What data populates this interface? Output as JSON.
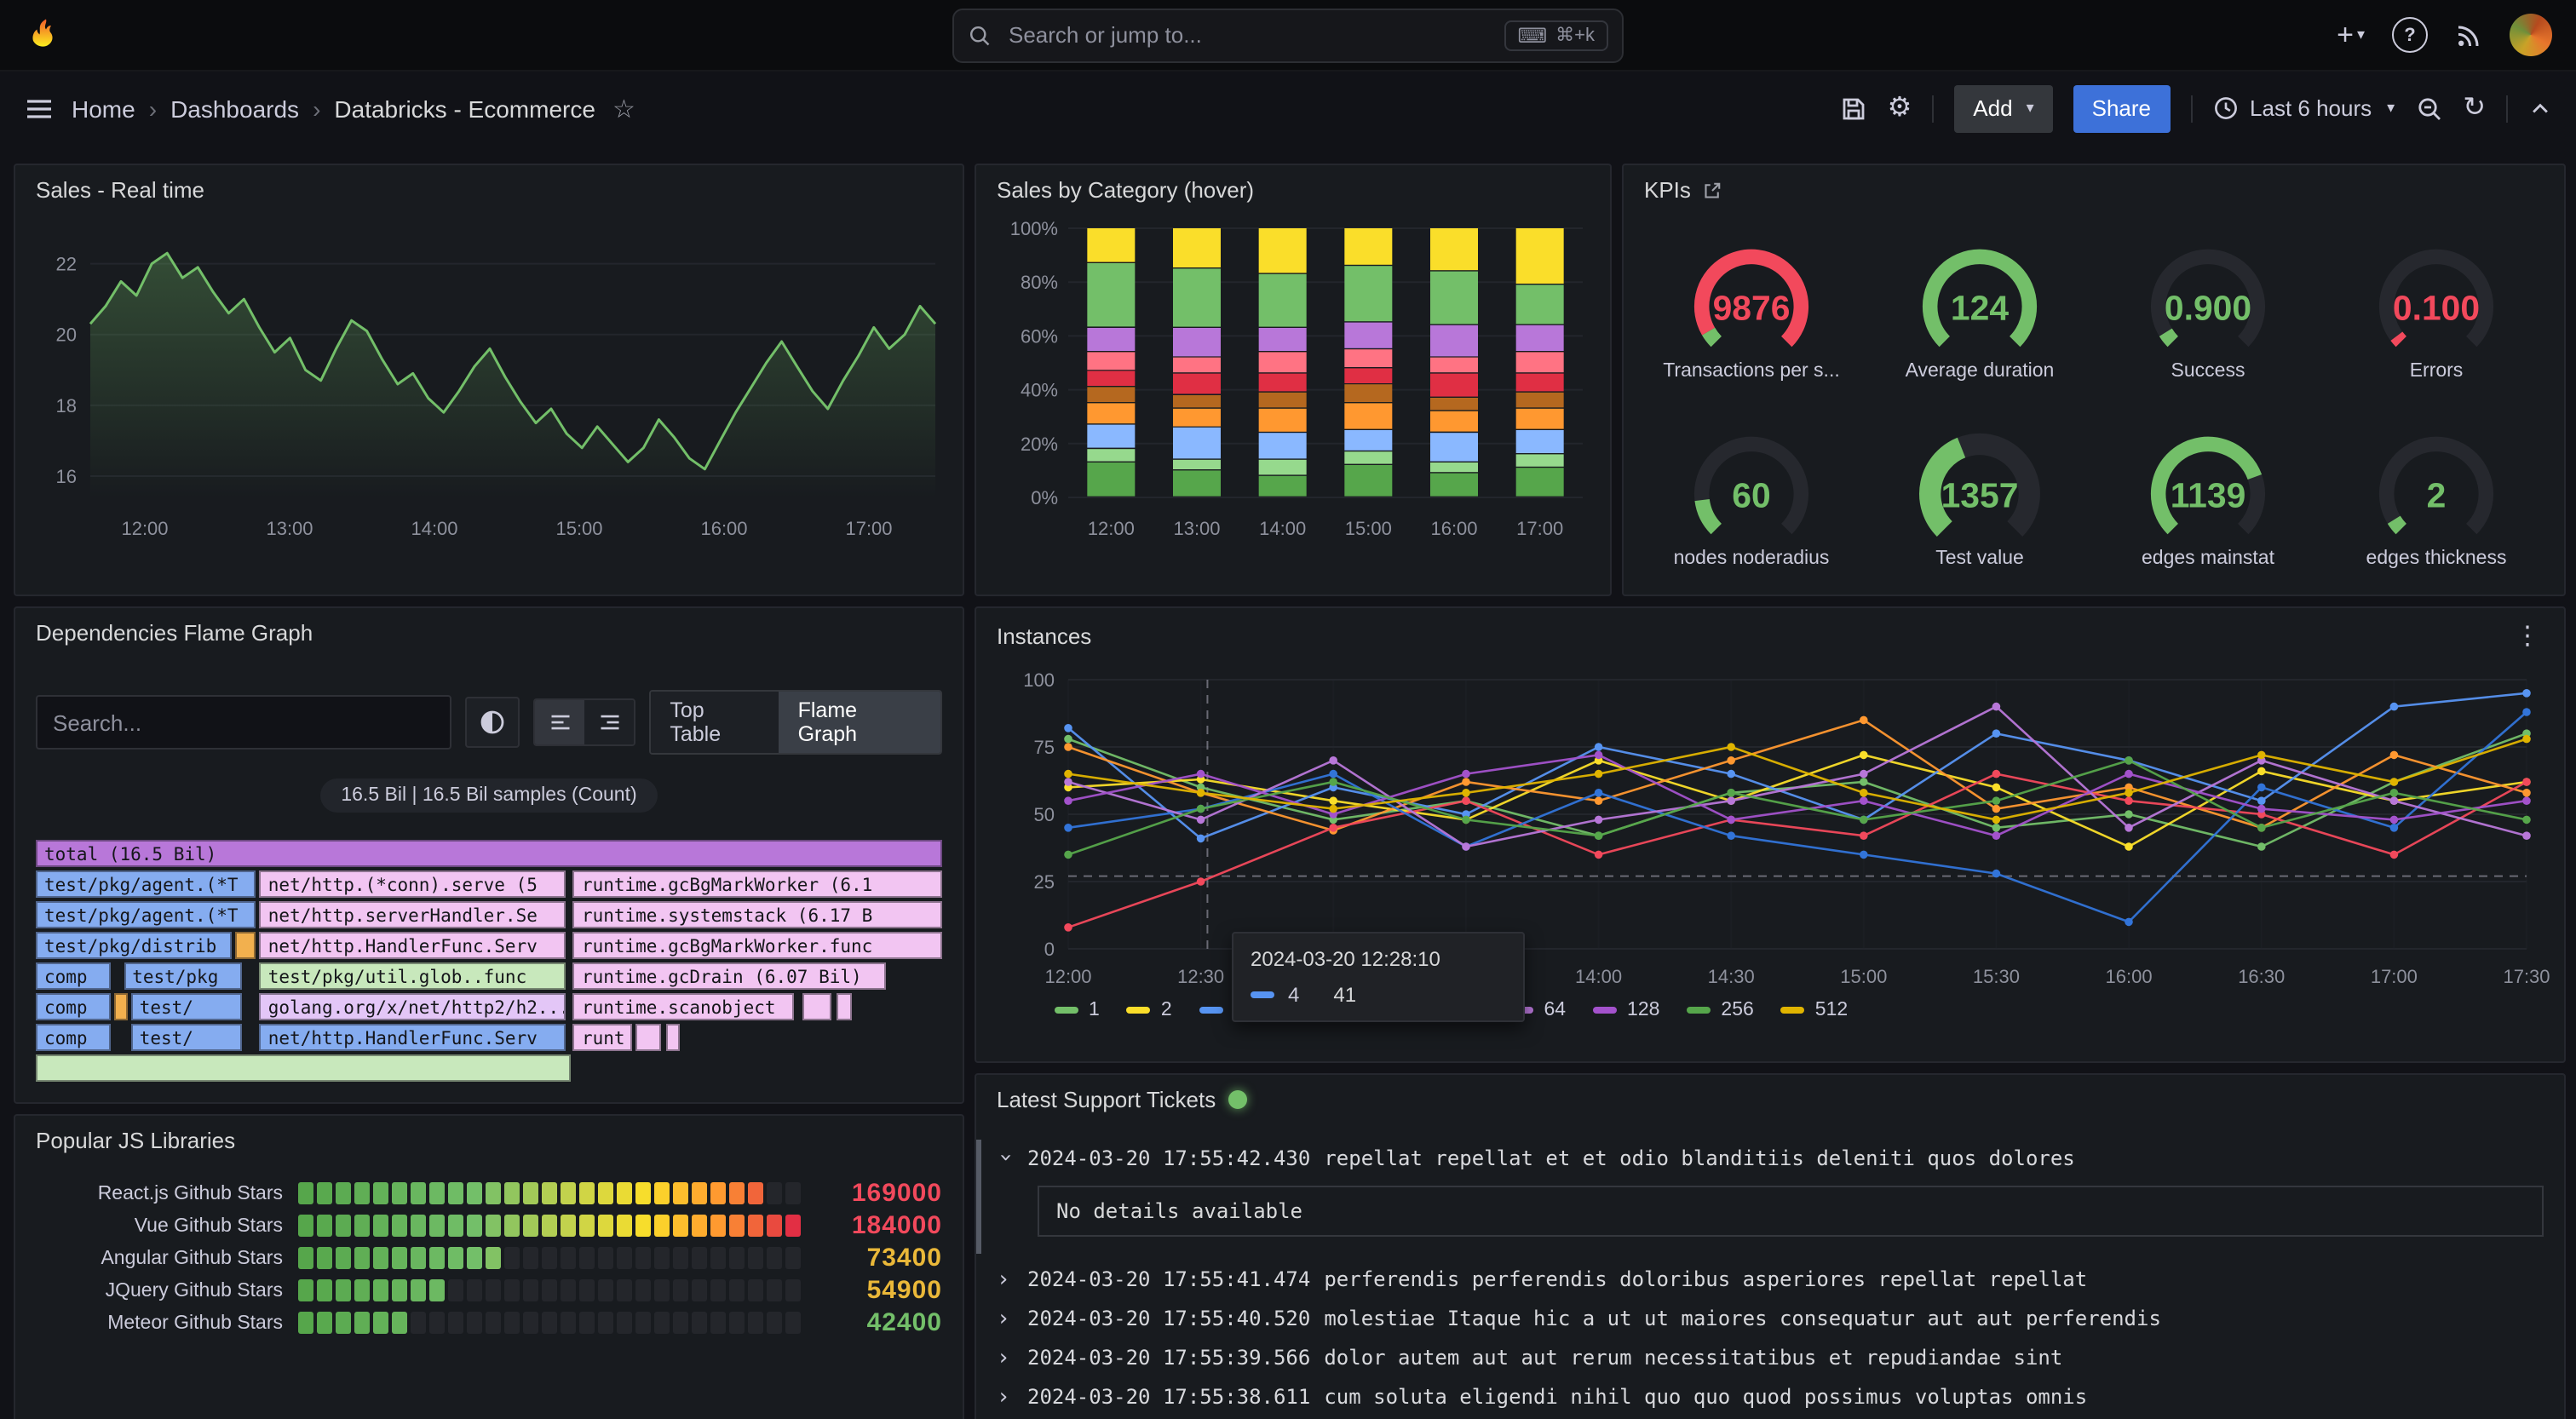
{
  "topnav": {
    "search": {
      "placeholder": "Search or jump to...",
      "shortcut": "⌘+k"
    }
  },
  "nav2": {
    "breadcrumbs": [
      "Home",
      "Dashboards",
      "Databricks - Ecommerce"
    ],
    "add_label": "Add",
    "share_label": "Share",
    "time_range": "Last 6 hours"
  },
  "sales_panel": {
    "title": "Sales - Real time",
    "color": "#73BF69",
    "ymin": 15.4,
    "ymax": 23.0,
    "y_ticks": [
      22,
      20,
      18,
      16
    ],
    "x_ticks": [
      "12:00",
      "13:00",
      "14:00",
      "15:00",
      "16:00",
      "17:00"
    ],
    "values": [
      20.3,
      20.8,
      21.5,
      21.1,
      22.0,
      22.3,
      21.6,
      21.9,
      21.2,
      20.6,
      21.0,
      20.2,
      19.5,
      19.9,
      19.0,
      18.7,
      19.6,
      20.4,
      20.1,
      19.3,
      18.6,
      18.9,
      18.2,
      17.8,
      18.4,
      19.1,
      19.6,
      18.8,
      18.1,
      17.5,
      17.9,
      17.2,
      16.8,
      17.4,
      16.9,
      16.4,
      16.8,
      17.6,
      17.1,
      16.5,
      16.2,
      17.0,
      17.8,
      18.5,
      19.2,
      19.8,
      19.1,
      18.4,
      17.9,
      18.7,
      19.4,
      20.2,
      19.6,
      20.0,
      20.8,
      20.3
    ]
  },
  "category_panel": {
    "title": "Sales by Category (hover)",
    "y_ticks": [
      "100%",
      "80%",
      "60%",
      "40%",
      "20%",
      "0%"
    ],
    "x_ticks": [
      "12:00",
      "13:00",
      "14:00",
      "15:00",
      "16:00",
      "17:00"
    ],
    "segments": [
      {
        "color": "#56A64B",
        "values": [
          13,
          10,
          8,
          12,
          9,
          11
        ]
      },
      {
        "color": "#96D98D",
        "values": [
          5,
          4,
          6,
          5,
          4,
          5
        ]
      },
      {
        "color": "#8AB8FF",
        "values": [
          9,
          12,
          10,
          8,
          11,
          9
        ]
      },
      {
        "color": "#FF9830",
        "values": [
          8,
          7,
          9,
          10,
          8,
          8
        ]
      },
      {
        "color": "#B5681F",
        "values": [
          6,
          5,
          6,
          7,
          5,
          6
        ]
      },
      {
        "color": "#E02F44",
        "values": [
          6,
          8,
          7,
          6,
          9,
          7
        ]
      },
      {
        "color": "#FF7383",
        "values": [
          7,
          6,
          8,
          7,
          6,
          8
        ]
      },
      {
        "color": "#B877D9",
        "values": [
          9,
          11,
          9,
          10,
          12,
          10
        ]
      },
      {
        "color": "#73BF69",
        "values": [
          24,
          22,
          20,
          21,
          20,
          15
        ]
      },
      {
        "color": "#FADE2A",
        "values": [
          13,
          15,
          17,
          14,
          16,
          21
        ]
      }
    ]
  },
  "kpis_panel": {
    "title": "KPIs",
    "gauges": [
      {
        "value": "9876",
        "label": "Transactions per s...",
        "color": "#F2495C",
        "thick": false,
        "arcs": [
          {
            "from": 0,
            "to": 0.055,
            "color": "#73BF69"
          },
          {
            "from": 0.055,
            "to": 1,
            "color": "#F2495C"
          }
        ]
      },
      {
        "value": "124",
        "label": "Average duration",
        "color": "#73BF69",
        "thick": false,
        "arcs": [
          {
            "from": 0,
            "to": 1,
            "color": "#73BF69"
          }
        ]
      },
      {
        "value": "0.900",
        "label": "Success",
        "color": "#73BF69",
        "thick": false,
        "arcs": [
          {
            "from": 0,
            "to": 0.05,
            "color": "#73BF69"
          }
        ]
      },
      {
        "value": "0.100",
        "label": "Errors",
        "color": "#F2495C",
        "thick": false,
        "arcs": [
          {
            "from": 0,
            "to": 0.03,
            "color": "#F2495C"
          }
        ]
      },
      {
        "value": "60",
        "label": "nodes noderadius",
        "color": "#73BF69",
        "thick": false,
        "arcs": [
          {
            "from": 0,
            "to": 0.14,
            "color": "#73BF69"
          }
        ]
      },
      {
        "value": "1357",
        "label": "Test value",
        "color": "#73BF69",
        "thick": true,
        "arcs": [
          {
            "from": 0,
            "to": 0.42,
            "color": "#73BF69"
          }
        ]
      },
      {
        "value": "1139",
        "label": "edges mainstat",
        "color": "#73BF69",
        "thick": false,
        "arcs": [
          {
            "from": 0,
            "to": 0.76,
            "color": "#73BF69"
          }
        ]
      },
      {
        "value": "2",
        "label": "edges thickness",
        "color": "#73BF69",
        "thick": false,
        "arcs": [
          {
            "from": 0,
            "to": 0.05,
            "color": "#73BF69"
          }
        ]
      }
    ]
  },
  "flame_panel": {
    "title": "Dependencies Flame Graph",
    "search_placeholder": "Search...",
    "tabs": [
      "Top Table",
      "Flame Graph"
    ],
    "active_tab": "Flame Graph",
    "badge": "16.5 Bil | 16.5 Bil samples (Count)",
    "colors": {
      "purple": "#b877d9",
      "blue": "#85acf0",
      "pink": "#f2c5f2",
      "green": "#c8e8bc",
      "amber": "#f2b04e",
      "lavender": "#e3c6f7"
    },
    "rows": [
      [
        {
          "t": "total (16.5 Bil)",
          "x": 0,
          "w": 100,
          "c": "purple"
        }
      ],
      [
        {
          "t": "test/pkg/agent.(*T",
          "x": 0,
          "w": 24.3,
          "c": "blue"
        },
        {
          "t": "net/http.(*conn).serve (5",
          "x": 24.7,
          "w": 33.8,
          "c": "pink"
        },
        {
          "t": "runtime.gcBgMarkWorker (6.1",
          "x": 59.3,
          "w": 40.7,
          "c": "pink"
        }
      ],
      [
        {
          "t": "test/pkg/agent.(*T",
          "x": 0,
          "w": 24.3,
          "c": "blue"
        },
        {
          "t": "net/http.serverHandler.Se",
          "x": 24.7,
          "w": 33.8,
          "c": "pink"
        },
        {
          "t": "runtime.systemstack (6.17 B",
          "x": 59.3,
          "w": 40.7,
          "c": "pink"
        }
      ],
      [
        {
          "t": "test/pkg/distrib",
          "x": 0,
          "w": 21.6,
          "c": "blue"
        },
        {
          "t": "",
          "x": 22,
          "w": 2.3,
          "c": "amber"
        },
        {
          "t": "net/http.HandlerFunc.Serv",
          "x": 24.7,
          "w": 33.8,
          "c": "pink"
        },
        {
          "t": "runtime.gcBgMarkWorker.func",
          "x": 59.3,
          "w": 40.7,
          "c": "pink"
        }
      ],
      [
        {
          "t": "comp",
          "x": 0,
          "w": 8.2,
          "c": "blue"
        },
        {
          "t": "test/pkg",
          "x": 9.7,
          "w": 13,
          "c": "blue"
        },
        {
          "t": "test/pkg/util.glob..func",
          "x": 24.7,
          "w": 33.8,
          "c": "green"
        },
        {
          "t": "runtime.gcDrain (6.07 Bil)",
          "x": 59.3,
          "w": 34.5,
          "c": "pink"
        }
      ],
      [
        {
          "t": "comp",
          "x": 0,
          "w": 8.2,
          "c": "blue"
        },
        {
          "t": "",
          "x": 8.7,
          "w": 1.4,
          "c": "amber"
        },
        {
          "t": "test/",
          "x": 10.5,
          "w": 12.2,
          "c": "blue"
        },
        {
          "t": "golang.org/x/net/http2/h2...",
          "x": 24.7,
          "w": 33.8,
          "c": "lavender"
        },
        {
          "t": "runtime.scanobject",
          "x": 59.3,
          "w": 24.4,
          "c": "pink"
        },
        {
          "t": "",
          "x": 84.5,
          "w": 3.2,
          "c": "pink"
        },
        {
          "t": "",
          "x": 88.4,
          "w": 1.6,
          "c": "pink"
        }
      ],
      [
        {
          "t": "comp",
          "x": 0,
          "w": 8.2,
          "c": "blue"
        },
        {
          "t": "test/",
          "x": 10.5,
          "w": 12.2,
          "c": "blue"
        },
        {
          "t": "net/http.HandlerFunc.Serv",
          "x": 24.7,
          "w": 33.8,
          "c": "blue"
        },
        {
          "t": "runt",
          "x": 59.3,
          "w": 6.4,
          "c": "pink"
        },
        {
          "t": "",
          "x": 66.2,
          "w": 2.7,
          "c": "pink"
        },
        {
          "t": "",
          "x": 69.5,
          "w": 1.5,
          "c": "pink"
        }
      ],
      [
        {
          "t": "",
          "x": 0,
          "w": 59,
          "c": "green"
        }
      ]
    ]
  },
  "instances_panel": {
    "title": "Instances",
    "y_ticks": [
      100,
      75,
      50,
      25,
      0
    ],
    "x_ticks": [
      "12:00",
      "12:30",
      "13:00",
      "13:30",
      "14:00",
      "14:30",
      "15:00",
      "15:30",
      "16:00",
      "16:30",
      "17:00",
      "17:30"
    ],
    "series": [
      {
        "name": "1",
        "color": "#73BF69",
        "values": [
          78,
          60,
          48,
          55,
          42,
          58,
          62,
          45,
          50,
          38,
          62,
          80
        ]
      },
      {
        "name": "2",
        "color": "#FADE2A",
        "values": [
          60,
          63,
          55,
          48,
          70,
          55,
          72,
          60,
          38,
          66,
          55,
          62
        ]
      },
      {
        "name": "4",
        "color": "#5794F2",
        "values": [
          82,
          41,
          60,
          50,
          75,
          65,
          48,
          80,
          70,
          55,
          90,
          95
        ]
      },
      {
        "name": "8",
        "color": "#FF9830",
        "values": [
          75,
          58,
          44,
          62,
          55,
          70,
          85,
          52,
          60,
          45,
          72,
          58
        ]
      },
      {
        "name": "16",
        "color": "#F2495C",
        "values": [
          8,
          25,
          45,
          55,
          35,
          48,
          42,
          65,
          55,
          50,
          35,
          62
        ]
      },
      {
        "name": "32",
        "color": "#3274D9",
        "values": [
          45,
          52,
          65,
          38,
          58,
          42,
          35,
          28,
          10,
          60,
          45,
          88
        ]
      },
      {
        "name": "64",
        "color": "#B877D9",
        "values": [
          62,
          48,
          70,
          38,
          48,
          55,
          65,
          90,
          45,
          70,
          55,
          42
        ]
      },
      {
        "name": "128",
        "color": "#A352CC",
        "values": [
          55,
          65,
          50,
          65,
          72,
          48,
          55,
          42,
          65,
          52,
          48,
          55
        ]
      },
      {
        "name": "256",
        "color": "#56A64B",
        "values": [
          35,
          52,
          62,
          48,
          42,
          58,
          48,
          55,
          70,
          45,
          58,
          48
        ]
      },
      {
        "name": "512",
        "color": "#E0B400",
        "values": [
          65,
          58,
          52,
          58,
          65,
          75,
          58,
          48,
          58,
          72,
          62,
          78
        ]
      }
    ],
    "tooltip": {
      "time": "2024-03-20 12:28:10",
      "series": "4",
      "value": "41",
      "color": "#5794F2"
    }
  },
  "libraries_panel": {
    "title": "Popular JS Libraries",
    "max": 184000,
    "cells": 27,
    "rows": [
      {
        "label": "React.js Github Stars",
        "value": 169000,
        "display": "169000",
        "color": "#F2495C"
      },
      {
        "label": "Vue Github Stars",
        "value": 184000,
        "display": "184000",
        "color": "#F2495C"
      },
      {
        "label": "Angular Github Stars",
        "value": 73400,
        "display": "73400",
        "color": "#EAB839"
      },
      {
        "label": "JQuery Github Stars",
        "value": 54900,
        "display": "54900",
        "color": "#EAB839"
      },
      {
        "label": "Meteor Github Stars",
        "value": 42400,
        "display": "42400",
        "color": "#73BF69"
      }
    ]
  },
  "logs_panel": {
    "title": "Latest Support Tickets",
    "detail_text": "No details available",
    "entries": [
      {
        "expanded": true,
        "time": "2024-03-20 17:55:42.430",
        "message": "repellat repellat et et odio blanditiis deleniti quos dolores"
      },
      {
        "expanded": false,
        "time": "2024-03-20 17:55:41.474",
        "message": "perferendis perferendis doloribus asperiores repellat repellat"
      },
      {
        "expanded": false,
        "time": "2024-03-20 17:55:40.520",
        "message": "molestiae Itaque hic a ut ut maiores consequatur aut aut perferendis"
      },
      {
        "expanded": false,
        "time": "2024-03-20 17:55:39.566",
        "message": "dolor autem aut aut rerum necessitatibus et repudiandae sint"
      },
      {
        "expanded": false,
        "time": "2024-03-20 17:55:38.611",
        "message": "cum soluta eligendi nihil quo quo quod possimus voluptas omnis"
      }
    ]
  }
}
